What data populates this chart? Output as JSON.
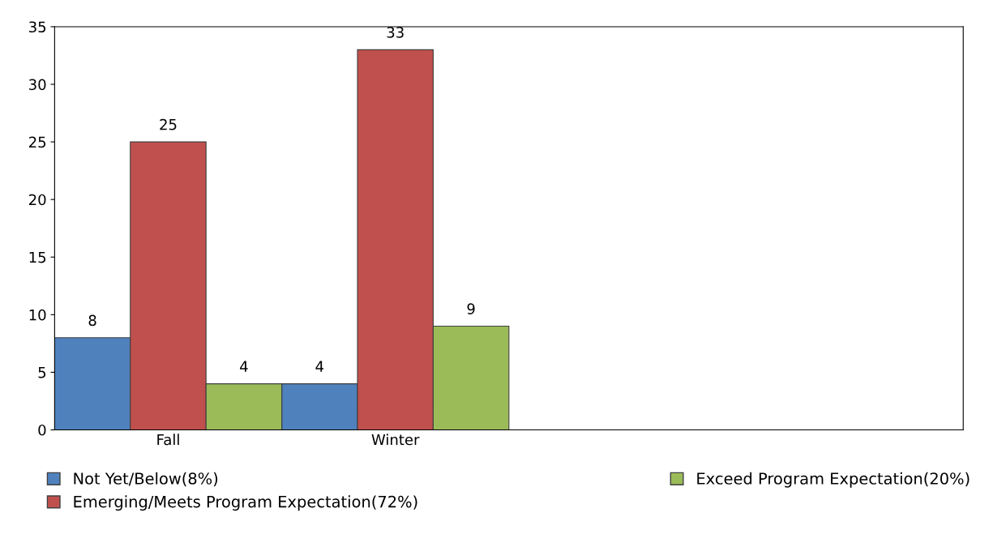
{
  "chart_data": {
    "type": "bar",
    "categories": [
      "Fall",
      "Winter",
      null,
      null
    ],
    "series": [
      {
        "name": "Not Yet/Below(8%)",
        "color": "#4f81bd",
        "values": [
          8,
          4,
          null,
          null
        ]
      },
      {
        "name": "Emerging/Meets Program Expectation(72%)",
        "color": "#c0504d",
        "values": [
          25,
          33,
          null,
          null
        ]
      },
      {
        "name": "Exceed Program Expectation(20%)",
        "color": "#9bbb59",
        "values": [
          4,
          9,
          null,
          null
        ]
      }
    ],
    "ylim": [
      0,
      35
    ],
    "yticks": [
      0,
      5,
      10,
      15,
      20,
      25,
      30,
      35
    ],
    "data_labels": true,
    "grid": false,
    "legend": "bottom"
  }
}
